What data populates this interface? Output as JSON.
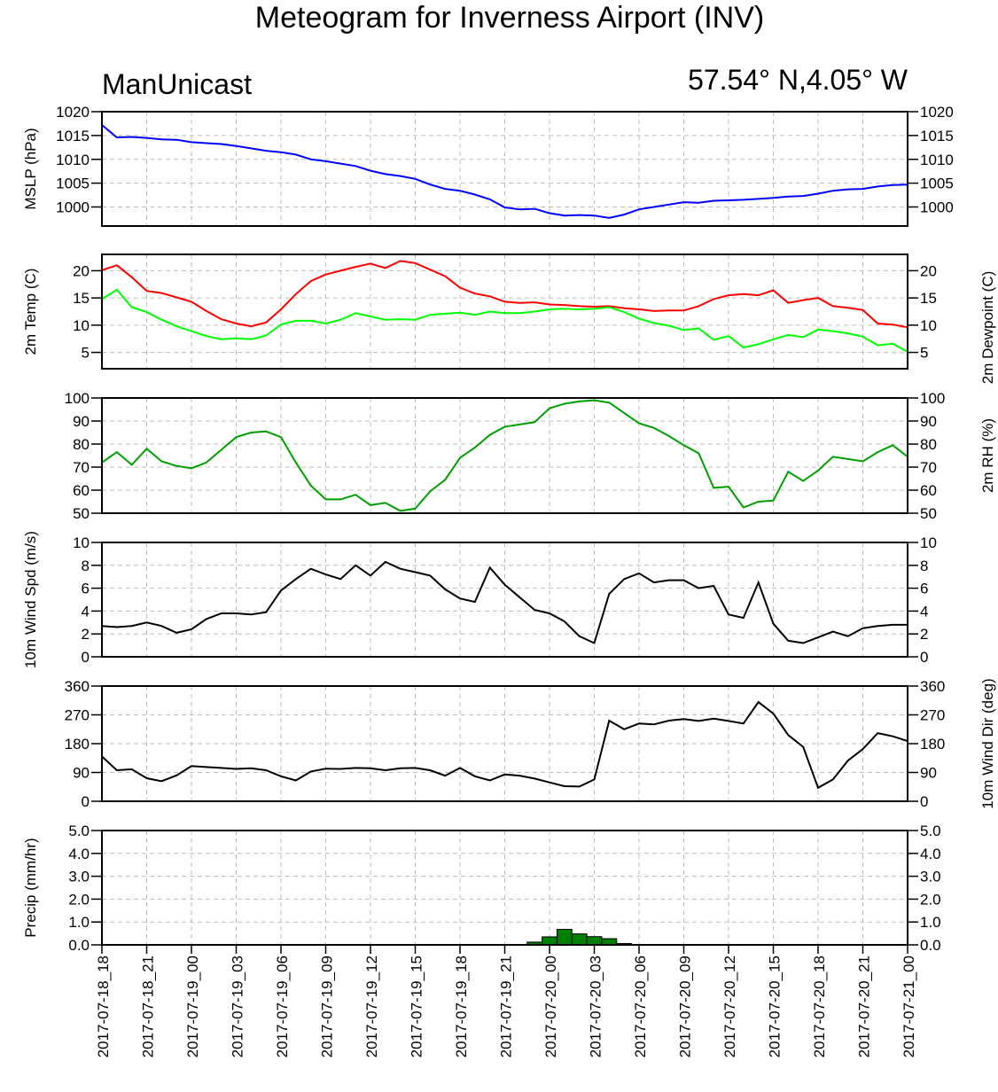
{
  "title": "Meteogram for Inverness Airport (INV)",
  "subtitle_left": "ManUnicast",
  "subtitle_right": "57.54° N,4.05° W",
  "x_tick_labels": [
    "2017-07-18_18",
    "2017-07-18_21",
    "2017-07-19_00",
    "2017-07-19_03",
    "2017-07-19_06",
    "2017-07-19_09",
    "2017-07-19_12",
    "2017-07-19_15",
    "2017-07-19_18",
    "2017-07-19_21",
    "2017-07-20_00",
    "2017-07-20_03",
    "2017-07-20_06",
    "2017-07-20_09",
    "2017-07-20_12",
    "2017-07-20_15",
    "2017-07-20_18",
    "2017-07-20_21",
    "2017-07-21_00"
  ],
  "colors": {
    "mslp": "#0000ff",
    "temp": "#ff0000",
    "dewpoint": "#00ff00",
    "rh": "#00a000",
    "wind": "#000000",
    "precip": "#008000"
  },
  "chart_data": [
    {
      "type": "line",
      "ylabel": "MSLP (hPa)",
      "ylim": [
        996,
        1020
      ],
      "yticks": [
        1000,
        1005,
        1010,
        1015,
        1020
      ],
      "x_hours": [
        0,
        1,
        2,
        3,
        4,
        5,
        6,
        7,
        8,
        9,
        10,
        11,
        12,
        13,
        14,
        15,
        16,
        17,
        18,
        19,
        20,
        21,
        22,
        23,
        24,
        25,
        26,
        27,
        28,
        29,
        30,
        31,
        32,
        33,
        34,
        35,
        36,
        37,
        38,
        39,
        40,
        41,
        42,
        43,
        44,
        45,
        46,
        47,
        48,
        49,
        50,
        51,
        52,
        53,
        54
      ],
      "series": [
        {
          "values": [
            1017.2,
            1014.6,
            1014.7,
            1014.5,
            1014.2,
            1014.1,
            1013.6,
            1013.4,
            1013.2,
            1012.8,
            1012.3,
            1011.8,
            1011.5,
            1011.0,
            1010.0,
            1009.6,
            1009.1,
            1008.6,
            1007.6,
            1006.9,
            1006.5,
            1005.9,
            1004.7,
            1003.8,
            1003.4,
            1002.6,
            1001.6,
            999.9,
            999.5,
            999.6,
            998.7,
            998.2,
            998.3,
            998.2,
            997.7,
            998.4,
            999.5,
            1000.0,
            1000.5,
            1001.0,
            1000.9,
            1001.3,
            1001.4,
            1001.5,
            1001.7,
            1001.9,
            1002.2,
            1002.3,
            1002.8,
            1003.4,
            1003.7,
            1003.8,
            1004.3,
            1004.6,
            1004.7
          ]
        }
      ]
    },
    {
      "type": "line",
      "ylabel": "2m Temp (C)",
      "ylabel_right": "2m Dewpoint (C)",
      "ylim": [
        2,
        23
      ],
      "yticks": [
        5,
        10,
        15,
        20
      ],
      "x_hours": [
        0,
        1,
        2,
        3,
        4,
        5,
        6,
        7,
        8,
        9,
        10,
        11,
        12,
        13,
        14,
        15,
        16,
        17,
        18,
        19,
        20,
        21,
        22,
        23,
        24,
        25,
        26,
        27,
        28,
        29,
        30,
        31,
        32,
        33,
        34,
        35,
        36,
        37,
        38,
        39,
        40,
        41,
        42,
        43,
        44,
        45,
        46,
        47,
        48,
        49,
        50,
        51,
        52,
        53,
        54
      ],
      "series": [
        {
          "values": [
            20.1,
            21.0,
            18.8,
            16.3,
            15.9,
            15.1,
            14.3,
            12.6,
            11.1,
            10.3,
            9.8,
            10.5,
            12.9,
            15.7,
            18.1,
            19.3,
            20.0,
            20.7,
            21.3,
            20.5,
            21.8,
            21.4,
            20.2,
            19.0,
            16.9,
            15.8,
            15.3,
            14.3,
            14.1,
            14.2,
            13.8,
            13.7,
            13.5,
            13.4,
            13.5,
            13.1,
            12.9,
            12.6,
            12.7,
            12.7,
            13.5,
            14.8,
            15.5,
            15.7,
            15.5,
            16.4,
            14.1,
            14.6,
            15.0,
            13.5,
            13.2,
            12.8,
            10.3,
            10.1,
            9.6
          ]
        },
        {
          "values": [
            14.8,
            16.5,
            13.3,
            12.4,
            11.0,
            9.8,
            8.9,
            8.0,
            7.4,
            7.6,
            7.4,
            8.1,
            10.1,
            10.8,
            10.8,
            10.3,
            11.0,
            12.2,
            11.6,
            11.0,
            11.1,
            11.0,
            11.9,
            12.1,
            12.3,
            11.9,
            12.5,
            12.2,
            12.2,
            12.5,
            12.9,
            13.0,
            12.9,
            13.0,
            13.3,
            12.4,
            11.2,
            10.4,
            9.9,
            9.1,
            9.4,
            7.3,
            8.0,
            5.9,
            6.5,
            7.4,
            8.2,
            7.8,
            9.2,
            8.9,
            8.5,
            7.9,
            6.3,
            6.6,
            5.1
          ]
        }
      ]
    },
    {
      "type": "line",
      "ylabel_right": "2m RH (%)",
      "ylim": [
        50,
        100
      ],
      "yticks": [
        50,
        60,
        70,
        80,
        90,
        100
      ],
      "x_hours": [
        0,
        1,
        2,
        3,
        4,
        5,
        6,
        7,
        8,
        9,
        10,
        11,
        12,
        13,
        14,
        15,
        16,
        17,
        18,
        19,
        20,
        21,
        22,
        23,
        24,
        25,
        26,
        27,
        28,
        29,
        30,
        31,
        32,
        33,
        34,
        35,
        36,
        37,
        38,
        39,
        40,
        41,
        42,
        43,
        44,
        45,
        46,
        47,
        48,
        49,
        50,
        51,
        52,
        53,
        54
      ],
      "series": [
        {
          "values": [
            72,
            76.5,
            71,
            78,
            72.5,
            70.5,
            69.5,
            72,
            77.5,
            83,
            85,
            85.5,
            83,
            72,
            62,
            56,
            56,
            58,
            53.5,
            54.5,
            51,
            52,
            59.5,
            64.5,
            74,
            78.5,
            84,
            87.5,
            88.5,
            89.5,
            95.5,
            97.5,
            98.5,
            99,
            98,
            93.5,
            89,
            87,
            83.5,
            79.5,
            76,
            61,
            61.5,
            52.5,
            55,
            55.5,
            68,
            64,
            68.5,
            74.5,
            73.5,
            72.5,
            76.5,
            79.5,
            74.5
          ]
        }
      ]
    },
    {
      "type": "line",
      "ylabel": "10m Wind Spd (m/s)",
      "ylim": [
        0,
        10
      ],
      "yticks": [
        0,
        2,
        4,
        6,
        8,
        10
      ],
      "x_hours": [
        0,
        1,
        2,
        3,
        4,
        5,
        6,
        7,
        8,
        9,
        10,
        11,
        12,
        13,
        14,
        15,
        16,
        17,
        18,
        19,
        20,
        21,
        22,
        23,
        24,
        25,
        26,
        27,
        28,
        29,
        30,
        31,
        32,
        33,
        34,
        35,
        36,
        37,
        38,
        39,
        40,
        41,
        42,
        43,
        44,
        45,
        46,
        47,
        48,
        49,
        50,
        51,
        52,
        53,
        54
      ],
      "series": [
        {
          "values": [
            2.7,
            2.6,
            2.7,
            3.0,
            2.7,
            2.1,
            2.4,
            3.3,
            3.8,
            3.8,
            3.7,
            3.9,
            5.8,
            6.8,
            7.7,
            7.2,
            6.8,
            8.0,
            7.1,
            8.3,
            7.7,
            7.4,
            7.1,
            5.9,
            5.1,
            4.8,
            7.8,
            6.3,
            5.2,
            4.1,
            3.8,
            3.1,
            1.8,
            1.2,
            5.5,
            6.8,
            7.3,
            6.5,
            6.7,
            6.7,
            6.0,
            6.2,
            3.7,
            3.4,
            6.5,
            2.9,
            1.4,
            1.2,
            1.7,
            2.2,
            1.8,
            2.5,
            2.7,
            2.8,
            2.8
          ]
        }
      ]
    },
    {
      "type": "line",
      "ylabel_right": "10m Wind Dir (deg)",
      "ylim": [
        0,
        360
      ],
      "yticks": [
        0,
        90,
        180,
        270,
        360
      ],
      "x_hours": [
        0,
        1,
        2,
        3,
        4,
        5,
        6,
        7,
        8,
        9,
        10,
        11,
        12,
        13,
        14,
        15,
        16,
        17,
        18,
        19,
        20,
        21,
        22,
        23,
        24,
        25,
        26,
        27,
        28,
        29,
        30,
        31,
        32,
        33,
        34,
        35,
        36,
        37,
        38,
        39,
        40,
        41,
        42,
        43,
        44,
        45,
        46,
        47,
        48,
        49,
        50,
        51,
        52,
        53,
        54
      ],
      "series": [
        {
          "values": [
            140,
            97,
            100,
            72,
            63,
            81,
            110,
            107,
            104,
            101,
            103,
            97,
            78,
            65,
            93,
            102,
            101,
            104,
            103,
            97,
            103,
            104,
            97,
            80,
            104,
            78,
            65,
            84,
            80,
            71,
            59,
            47,
            46,
            68,
            252,
            225,
            243,
            240,
            252,
            257,
            251,
            258,
            251,
            243,
            310,
            274,
            207,
            170,
            42,
            68,
            127,
            163,
            213,
            203,
            188
          ]
        }
      ]
    },
    {
      "type": "bar",
      "ylabel": "Precip (mm/hr)",
      "ylim": [
        0,
        5
      ],
      "yticks": [
        0.0,
        1.0,
        2.0,
        3.0,
        4.0,
        5.0
      ],
      "x_hours": [
        28,
        29,
        30,
        31,
        32,
        33,
        34,
        35,
        45
      ],
      "values": [
        0.02,
        0.12,
        0.35,
        0.68,
        0.48,
        0.36,
        0.27,
        0.06,
        0.02
      ]
    }
  ]
}
